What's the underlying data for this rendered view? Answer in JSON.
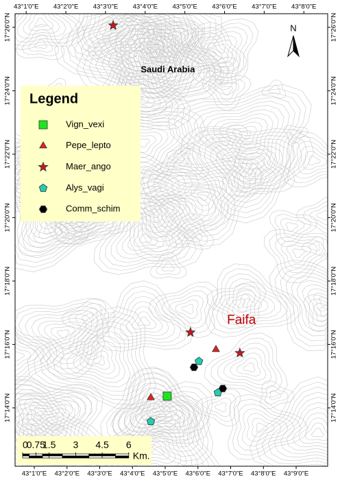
{
  "map": {
    "xlim": [
      0.414,
      9.963
    ],
    "ylim": [
      12.16,
      26.43
    ],
    "xticks_bottom": [
      {
        "value": 1,
        "label": "43°1'0\"E"
      },
      {
        "value": 2,
        "label": "43°2'0\"E"
      },
      {
        "value": 3,
        "label": "43°3'0\"E"
      },
      {
        "value": 4,
        "label": "43°4'0\"E"
      },
      {
        "value": 5,
        "label": "43°5'0\"E"
      },
      {
        "value": 6,
        "label": "43°6'0\"E"
      },
      {
        "value": 7,
        "label": "43°7'0\"E"
      },
      {
        "value": 8,
        "label": "43°8'0\"E"
      },
      {
        "value": 9,
        "label": "43°9'0\"E"
      }
    ],
    "xlim_top": [
      0.72,
      8.6
    ],
    "xticks_top": [
      {
        "value": 1,
        "label": "43°1'0\"E"
      },
      {
        "value": 2,
        "label": "43°2'0\"E"
      },
      {
        "value": 3,
        "label": "43°3'0\"E"
      },
      {
        "value": 4,
        "label": "43°4'0\"E"
      },
      {
        "value": 5,
        "label": "43°5'0\"E"
      },
      {
        "value": 6,
        "label": "43°6'0\"E"
      },
      {
        "value": 7,
        "label": "43°7'0\"E"
      },
      {
        "value": 8,
        "label": "43°8'0\"E"
      }
    ],
    "yticks": [
      {
        "value": 26,
        "label": "17°26'0\"N"
      },
      {
        "value": 24,
        "label": "17°24'0\"N"
      },
      {
        "value": 22,
        "label": "17°22'0\"N"
      },
      {
        "value": 20,
        "label": "17°20'0\"N"
      },
      {
        "value": 18,
        "label": "17°18'0\"N"
      },
      {
        "value": 16,
        "label": "17°16'0\"N"
      },
      {
        "value": 14,
        "label": "17°14'0\"N"
      }
    ],
    "labels": [
      {
        "text": "Saudi Arabia",
        "lon": 5.08,
        "lat": 24.66,
        "color": "#000000"
      },
      {
        "text": "Faifa",
        "lon": 7.33,
        "lat": 16.75,
        "color": "#c00000"
      }
    ],
    "north": "N",
    "legend_title": "Legend",
    "series": [
      {
        "name": "Vign_vexi",
        "shape": "square",
        "color": "#1ee61e",
        "points": [
          {
            "lon": 5.06,
            "lat": 14.37
          }
        ]
      },
      {
        "name": "Pepe_lepto",
        "shape": "triangle",
        "color": "#e82020",
        "points": [
          {
            "lon": 6.55,
            "lat": 15.84
          },
          {
            "lon": 4.56,
            "lat": 14.32
          }
        ]
      },
      {
        "name": "Maer_ango",
        "shape": "star",
        "color": "#c81818",
        "points": [
          {
            "lon": 3.41,
            "lat": 26.06
          },
          {
            "lon": 5.77,
            "lat": 16.38
          },
          {
            "lon": 7.28,
            "lat": 15.73
          }
        ]
      },
      {
        "name": "Alys_vagi",
        "shape": "pentagon",
        "color": "#22cdb0",
        "points": [
          {
            "lon": 6.03,
            "lat": 15.47
          },
          {
            "lon": 4.56,
            "lat": 13.57
          },
          {
            "lon": 6.61,
            "lat": 14.48
          }
        ]
      },
      {
        "name": "Comm_schim",
        "shape": "hexagon",
        "color": "#000000",
        "points": [
          {
            "lon": 5.88,
            "lat": 15.28
          },
          {
            "lon": 6.76,
            "lat": 14.61
          }
        ]
      }
    ],
    "scale": {
      "unit": "Km.",
      "ticks": [
        {
          "value": 0,
          "label": "0"
        },
        {
          "value": 0.75,
          "label": "0.75"
        },
        1.5,
        3,
        4.5,
        6
      ]
    }
  }
}
